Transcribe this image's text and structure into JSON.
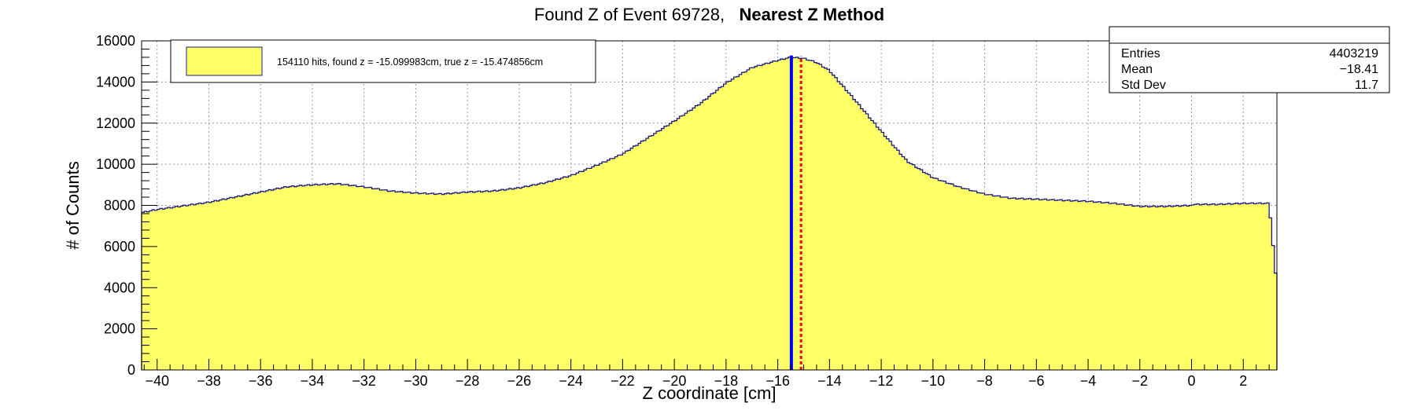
{
  "chart_data": {
    "type": "histogram",
    "title_prefix": "Found Z of Event 69728,",
    "title_bold": "Nearest Z Method",
    "xlabel": "Z coordinate [cm]",
    "ylabel": "# of Counts",
    "xlim": [
      -40.6,
      3.3
    ],
    "ylim": [
      0,
      16000
    ],
    "grid": true,
    "fill_color": "#ffff66",
    "line_color": "#1a1a8c",
    "x_ticks": [
      "−40",
      "−38",
      "−36",
      "−34",
      "−32",
      "−30",
      "−28",
      "−26",
      "−24",
      "−22",
      "−20",
      "−18",
      "−16",
      "−14",
      "−12",
      "−10",
      "−8",
      "−6",
      "−4",
      "−2",
      "0",
      "2"
    ],
    "y_ticks": [
      "0",
      "2000",
      "4000",
      "6000",
      "8000",
      "10000",
      "12000",
      "14000",
      "16000"
    ],
    "curve": {
      "x": [
        -40.6,
        -40,
        -38,
        -36,
        -35,
        -34,
        -33,
        -32,
        -31,
        -30,
        -29,
        -28,
        -27,
        -26,
        -25,
        -24,
        -23,
        -22,
        -21,
        -20,
        -19,
        -18,
        -17,
        -16,
        -15.5,
        -15,
        -14.5,
        -14,
        -13,
        -12,
        -11,
        -10,
        -9,
        -8,
        -7,
        -6,
        -5,
        -4,
        -3,
        -2,
        -1,
        0,
        1,
        2,
        3,
        3.3
      ],
      "y": [
        7700,
        7850,
        8200,
        8700,
        8950,
        9050,
        9100,
        8950,
        8750,
        8650,
        8600,
        8700,
        8750,
        8900,
        9150,
        9500,
        10000,
        10550,
        11350,
        12150,
        13000,
        14000,
        14750,
        15100,
        15250,
        15200,
        15000,
        14600,
        13150,
        11650,
        10200,
        9400,
        8950,
        8600,
        8400,
        8350,
        8300,
        8250,
        8150,
        8000,
        8000,
        8050,
        8050,
        8100,
        8100,
        4000
      ]
    },
    "found_z": -15.099983,
    "true_z": -15.474856,
    "found_z_color": "#ff0000",
    "true_z_color": "#0000ff",
    "legend": {
      "position": "top-left",
      "text": "154110 hits, found z = -15.099983cm, true z = -15.474856cm"
    },
    "stats_box": {
      "position": "top-right",
      "rows": [
        {
          "label": "Entries",
          "value": "4403219"
        },
        {
          "label": "Mean",
          "value": "−18.41"
        },
        {
          "label": "Std Dev",
          "value": "11.7"
        }
      ]
    }
  }
}
